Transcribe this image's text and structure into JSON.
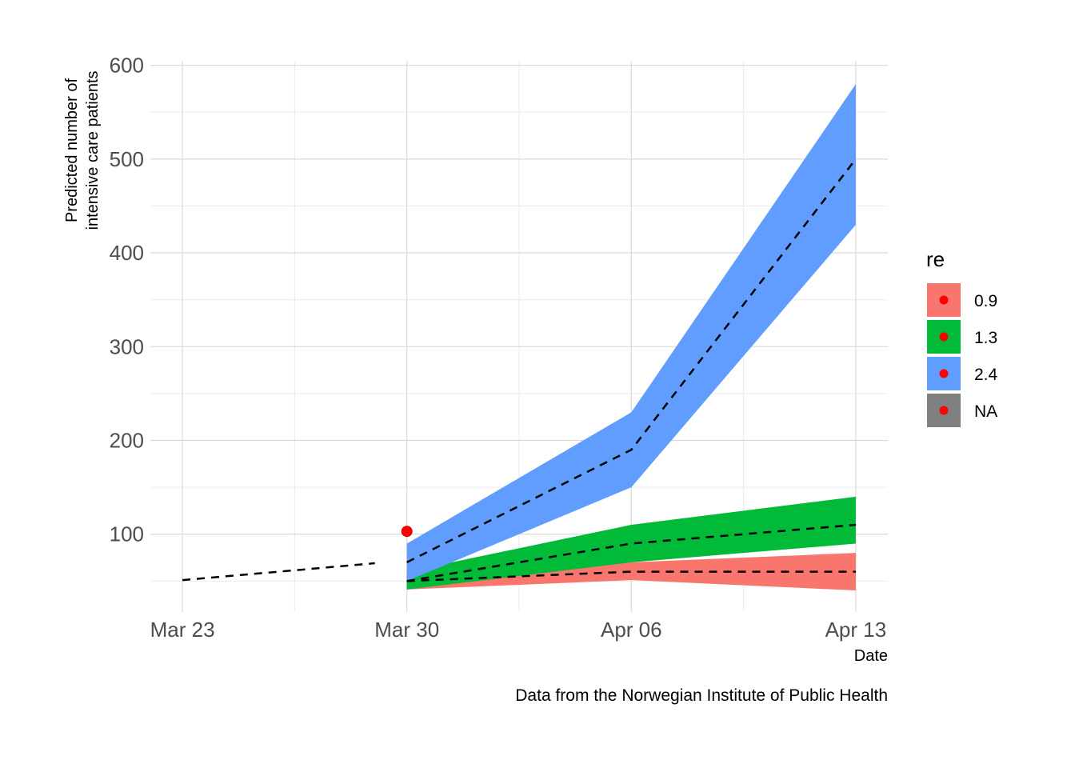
{
  "chart_data": {
    "type": "area",
    "xlabel": "Date",
    "ylabel_lines": [
      "Predicted number of",
      "intensive care patients"
    ],
    "caption": "Data from the Norwegian Institute of Public Health",
    "x_ticks": [
      "Mar 23",
      "Mar 30",
      "Apr 06",
      "Apr 13"
    ],
    "x_range": [
      "2020-03-22",
      "2020-04-14"
    ],
    "y_ticks": [
      100,
      200,
      300,
      400,
      500,
      600
    ],
    "y_range": [
      17,
      604
    ],
    "grid": true,
    "legend": {
      "title": "re",
      "position": "right",
      "entries": [
        {
          "label": "0.9",
          "color": "#F8766D"
        },
        {
          "label": "1.3",
          "color": "#00BA38"
        },
        {
          "label": "2.4",
          "color": "#619CFF"
        },
        {
          "label": "NA",
          "color": "#7F7F7F"
        }
      ]
    },
    "observed_line": {
      "style": "dashed",
      "points": [
        {
          "x": "2020-03-23",
          "y": 51
        },
        {
          "x": "2020-03-29",
          "y": 69
        }
      ]
    },
    "observed_point": {
      "x": "2020-03-30",
      "y": 103,
      "color": "#FF0000"
    },
    "series": [
      {
        "name": "0.9",
        "color": "#F8766D",
        "x": [
          "2020-03-30",
          "2020-04-06",
          "2020-04-13"
        ],
        "lower": [
          41,
          51,
          40
        ],
        "upper": [
          50,
          70,
          80
        ],
        "median": [
          50,
          60,
          60
        ]
      },
      {
        "name": "1.3",
        "color": "#00BA38",
        "x": [
          "2020-03-30",
          "2020-04-06",
          "2020-04-13"
        ],
        "lower": [
          41,
          70,
          90
        ],
        "upper": [
          60,
          110,
          140
        ],
        "median": [
          50,
          90,
          110
        ]
      },
      {
        "name": "2.4",
        "color": "#619CFF",
        "x": [
          "2020-03-30",
          "2020-04-06",
          "2020-04-13"
        ],
        "lower": [
          50,
          150,
          430
        ],
        "upper": [
          90,
          230,
          580
        ],
        "median": [
          70,
          190,
          500
        ]
      }
    ]
  }
}
